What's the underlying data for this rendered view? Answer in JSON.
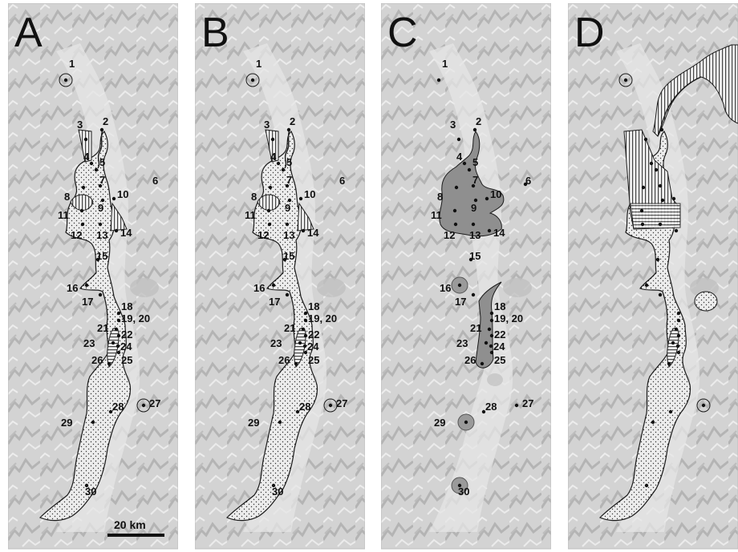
{
  "figure": {
    "panels": [
      {
        "letter": "A",
        "variant": "full",
        "scale_bar": "20 km"
      },
      {
        "letter": "B",
        "variant": "full",
        "scale_bar": ""
      },
      {
        "letter": "C",
        "variant": "clusters",
        "scale_bar": ""
      },
      {
        "letter": "D",
        "variant": "unlabeled",
        "scale_bar": ""
      }
    ],
    "sites": [
      {
        "id": "1",
        "label": "1"
      },
      {
        "id": "2",
        "label": "2"
      },
      {
        "id": "3",
        "label": "3"
      },
      {
        "id": "4",
        "label": "4"
      },
      {
        "id": "5",
        "label": "5"
      },
      {
        "id": "6",
        "label": "6"
      },
      {
        "id": "7",
        "label": "7"
      },
      {
        "id": "8",
        "label": "8"
      },
      {
        "id": "9",
        "label": "9"
      },
      {
        "id": "10",
        "label": "10"
      },
      {
        "id": "11",
        "label": "11"
      },
      {
        "id": "12",
        "label": "12"
      },
      {
        "id": "13",
        "label": "13"
      },
      {
        "id": "14",
        "label": "14"
      },
      {
        "id": "15",
        "label": "15"
      },
      {
        "id": "16",
        "label": "16"
      },
      {
        "id": "17",
        "label": "17"
      },
      {
        "id": "18",
        "label": "18"
      },
      {
        "id": "19",
        "label": "19, 20"
      },
      {
        "id": "21",
        "label": "21"
      },
      {
        "id": "22",
        "label": "22"
      },
      {
        "id": "23",
        "label": "23"
      },
      {
        "id": "24",
        "label": "24"
      },
      {
        "id": "25",
        "label": "25"
      },
      {
        "id": "26",
        "label": "26"
      },
      {
        "id": "27",
        "label": "27"
      },
      {
        "id": "28",
        "label": "28"
      },
      {
        "id": "29",
        "label": "29"
      },
      {
        "id": "30",
        "label": "30"
      }
    ],
    "colors": {
      "terrain": "#d6d6d6",
      "terrain_shadow": "#a9a9a9",
      "outline": "#1a1a1a",
      "cluster_fill": "#8f8f8f",
      "dot": "#111111"
    }
  }
}
